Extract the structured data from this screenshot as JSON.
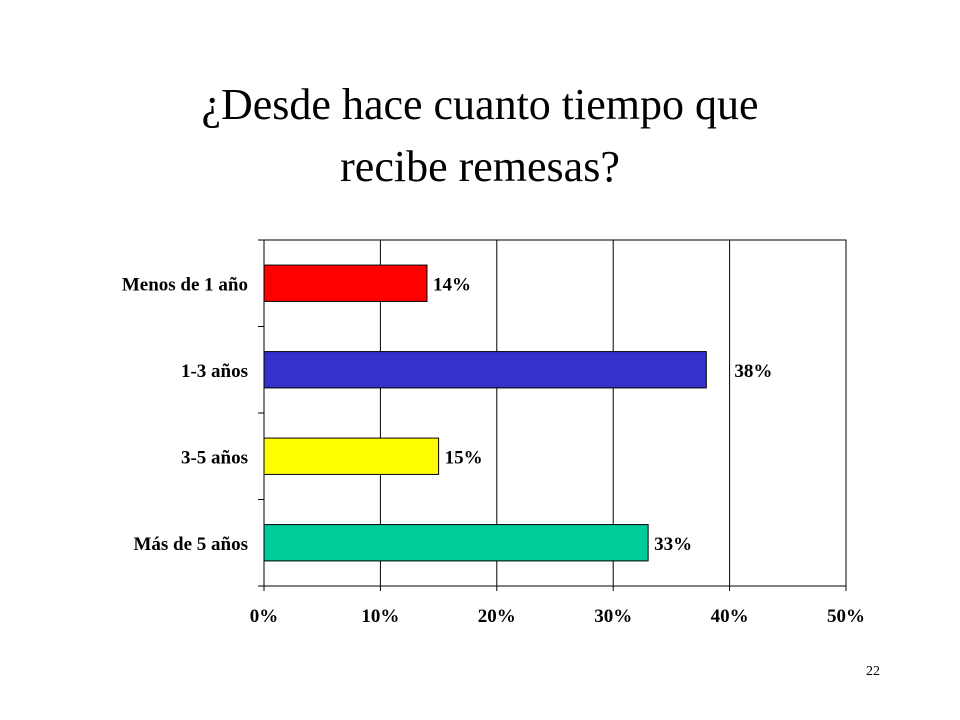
{
  "slide": {
    "title_line1": "¿Desde hace cuanto tiempo que",
    "title_line2": "recibe remesas?",
    "page_number": "22"
  },
  "chart_data": {
    "type": "bar",
    "orientation": "horizontal",
    "title": "",
    "xlabel": "",
    "ylabel": "",
    "categories": [
      "Menos de 1 año",
      "1-3 años",
      "3-5 años",
      "Más de 5 años"
    ],
    "values": [
      14,
      38,
      15,
      33
    ],
    "value_labels": [
      "14%",
      "38%",
      "15%",
      "33%"
    ],
    "colors": [
      "#ff0000",
      "#3333cc",
      "#ffff00",
      "#00cc99"
    ],
    "xlim": [
      0,
      50
    ],
    "xticks": [
      0,
      10,
      20,
      30,
      40,
      50
    ],
    "xtick_labels": [
      "0%",
      "10%",
      "20%",
      "30%",
      "40%",
      "50%"
    ],
    "grid": "vertical",
    "legend": "none"
  }
}
